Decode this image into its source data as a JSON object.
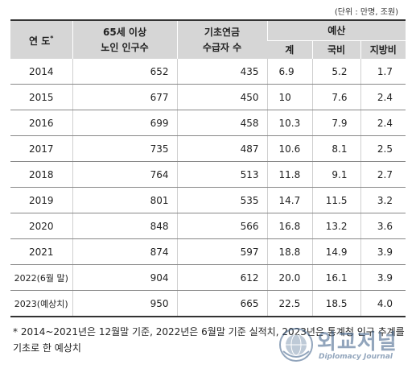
{
  "unit_note": "(단위 : 만명, 조원)",
  "header": {
    "year": "연 도",
    "year_mark": "*",
    "pop_line1": "65세 이상",
    "pop_line2": "노인 인구수",
    "rec_line1": "기초연금",
    "rec_line2": "수급자 수",
    "budget": "예산",
    "total": "계",
    "national": "국비",
    "local": "지방비"
  },
  "rows": [
    {
      "year": "2014",
      "pop": "652",
      "rec": "435",
      "total": "6.9",
      "national": "5.2",
      "local": "1.7"
    },
    {
      "year": "2015",
      "pop": "677",
      "rec": "450",
      "total": "10",
      "national": "7.6",
      "local": "2.4"
    },
    {
      "year": "2016",
      "pop": "699",
      "rec": "458",
      "total": "10.3",
      "national": "7.9",
      "local": "2.4"
    },
    {
      "year": "2017",
      "pop": "735",
      "rec": "487",
      "total": "10.6",
      "national": "8.1",
      "local": "2.5"
    },
    {
      "year": "2018",
      "pop": "764",
      "rec": "513",
      "total": "11.8",
      "national": "9.1",
      "local": "2.7"
    },
    {
      "year": "2019",
      "pop": "801",
      "rec": "535",
      "total": "14.7",
      "national": "11.5",
      "local": "3.2"
    },
    {
      "year": "2020",
      "pop": "848",
      "rec": "566",
      "total": "16.8",
      "national": "13.2",
      "local": "3.6"
    },
    {
      "year": "2021",
      "pop": "874",
      "rec": "597",
      "total": "18.8",
      "national": "14.9",
      "local": "3.9"
    },
    {
      "year": "2022(6월 말)",
      "pop": "904",
      "rec": "612",
      "total": "20.0",
      "national": "16.1",
      "local": "3.9"
    },
    {
      "year": "2023(예상치)",
      "pop": "950",
      "rec": "665",
      "total": "22.5",
      "national": "18.5",
      "local": "4.0"
    }
  ],
  "footnote": "* 2014~2021년은 12월말 기준, 2022년은 6월말 기준 실적치, 2023년은 통계청 인구 추계를 기초로 한 예상치",
  "watermark": {
    "title": "외교저널",
    "subtitle": "Diplomacy Journal",
    "icon": "globe-seal-icon",
    "color": "#3a5d86"
  }
}
